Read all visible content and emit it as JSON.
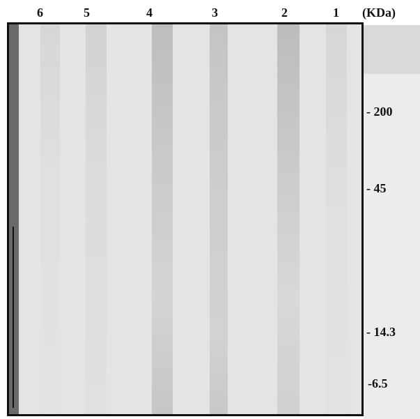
{
  "lanes": [
    "6",
    "5",
    "4",
    "3",
    "2",
    "1"
  ],
  "unit": "(KDa)",
  "markers": [
    "- 200",
    "- 45",
    "- 14.3",
    "-6.5"
  ]
}
